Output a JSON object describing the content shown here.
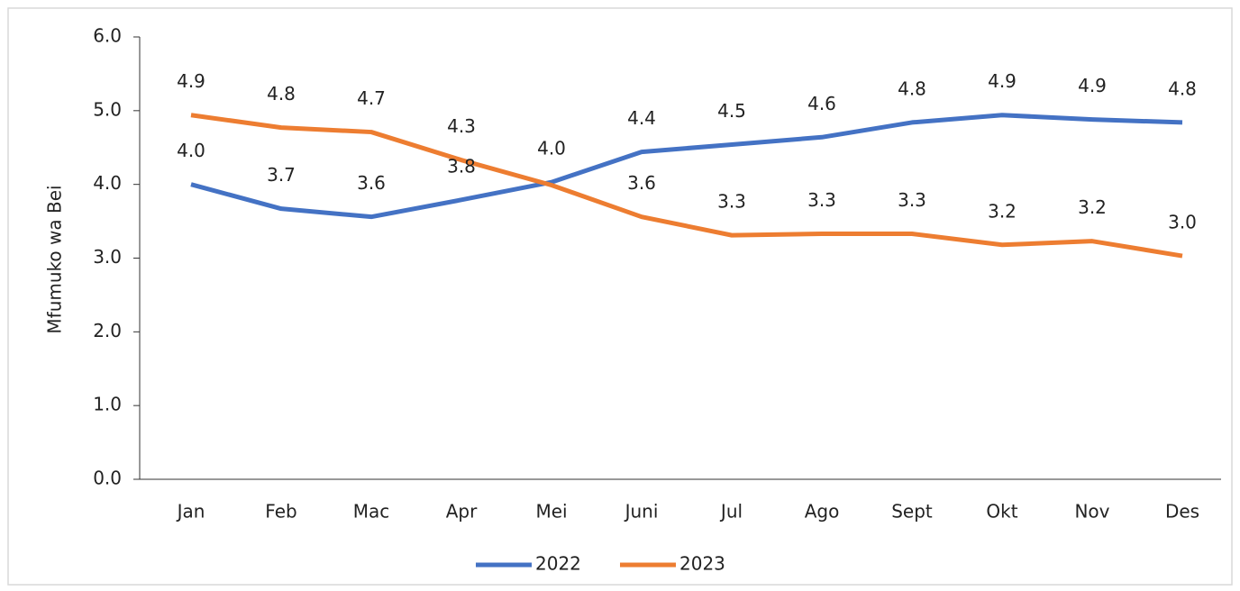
{
  "chart_data": {
    "type": "line",
    "y_label": "Mfumuko wa Bei",
    "categories": [
      "Jan",
      "Feb",
      "Mac",
      "Apr",
      "Mei",
      "Juni",
      "Jul",
      "Ago",
      "Sept",
      "Okt",
      "Nov",
      "Des"
    ],
    "series": [
      {
        "name": "2022",
        "color": "#4472c4",
        "values": [
          4.0,
          3.67,
          3.56,
          3.79,
          4.03,
          4.44,
          4.54,
          4.64,
          4.84,
          4.94,
          4.88,
          4.84
        ],
        "value_labels": [
          "4.0",
          "3.7",
          "3.6",
          "3.8",
          "4.0",
          "4.4",
          "4.5",
          "4.6",
          "4.8",
          "4.9",
          "4.9",
          "4.8"
        ]
      },
      {
        "name": "2023",
        "color": "#ed7d31",
        "values": [
          4.94,
          4.77,
          4.71,
          4.33,
          3.99,
          3.56,
          3.31,
          3.33,
          3.33,
          3.18,
          3.23,
          3.03
        ],
        "value_labels": [
          "4.9",
          "4.8",
          "4.7",
          "4.3",
          null,
          "3.6",
          "3.3",
          "3.3",
          "3.3",
          "3.2",
          "3.2",
          "3.0"
        ]
      }
    ],
    "ylim": [
      0,
      6
    ],
    "yticks": [
      {
        "value": 0,
        "label": "0.0"
      },
      {
        "value": 1,
        "label": "1.0"
      },
      {
        "value": 2,
        "label": "2.0"
      },
      {
        "value": 3,
        "label": "3.0"
      },
      {
        "value": 4,
        "label": "4.0"
      },
      {
        "value": 5,
        "label": "5.0"
      },
      {
        "value": 6,
        "label": "6.0"
      }
    ],
    "legend": "bottom"
  }
}
